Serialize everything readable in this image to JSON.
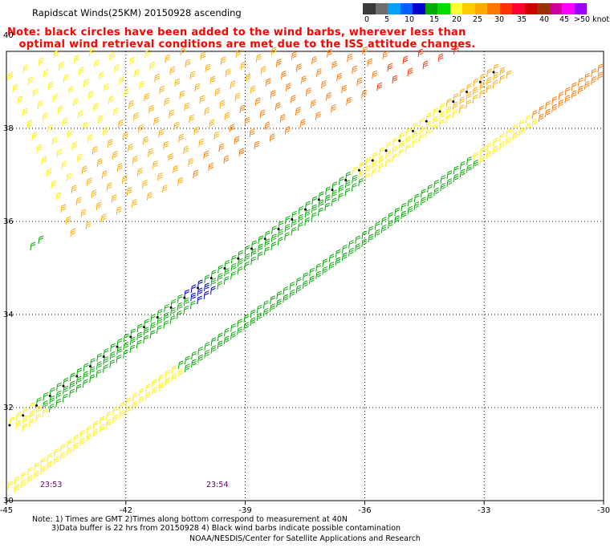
{
  "title": "Rapidscat Winds(25KM) 20150928 ascending",
  "note": {
    "line1": "Note: black circles have been added to the wind barbs, wherever less than",
    "line2": "optimal wind retrieval conditions are met due to the ISS attitude changes."
  },
  "legend": {
    "unit": ">50 knots",
    "labels": [
      "0",
      "5",
      "10",
      "15",
      "20",
      "25",
      "30",
      "35",
      "40",
      "45",
      ">50 knots"
    ],
    "colors": [
      "#3a3a3a",
      "#6e6e6e",
      "#00a0ff",
      "#0060ff",
      "#0000cc",
      "#00aa00",
      "#00dd00",
      "#ffff33",
      "#ffcc00",
      "#ffaa00",
      "#ff7700",
      "#ff3300",
      "#ff0033",
      "#cc0000",
      "#993300",
      "#cc0099",
      "#ff00ff",
      "#9900ff"
    ]
  },
  "map": {
    "lon_ticks": [
      "-45",
      "-42",
      "-39",
      "-36",
      "-33",
      "-30"
    ],
    "lat_ticks": [
      "40",
      "38",
      "36",
      "34",
      "32",
      "30"
    ],
    "lon_range": [
      -45,
      -30
    ],
    "lat_range": [
      30,
      40.4
    ],
    "times": [
      "23:53",
      "23:54"
    ]
  },
  "footer": {
    "line1": "Note: 1) Times are GMT 2)Times along bottom correspond to measurement at 40N",
    "line2": "3)Data buffer is 22 hrs from 20150928 4) Black wind barbs indicate possible contamination",
    "credit": "NOAA/NESDIS/Center for Satellite Applications and Research"
  }
}
